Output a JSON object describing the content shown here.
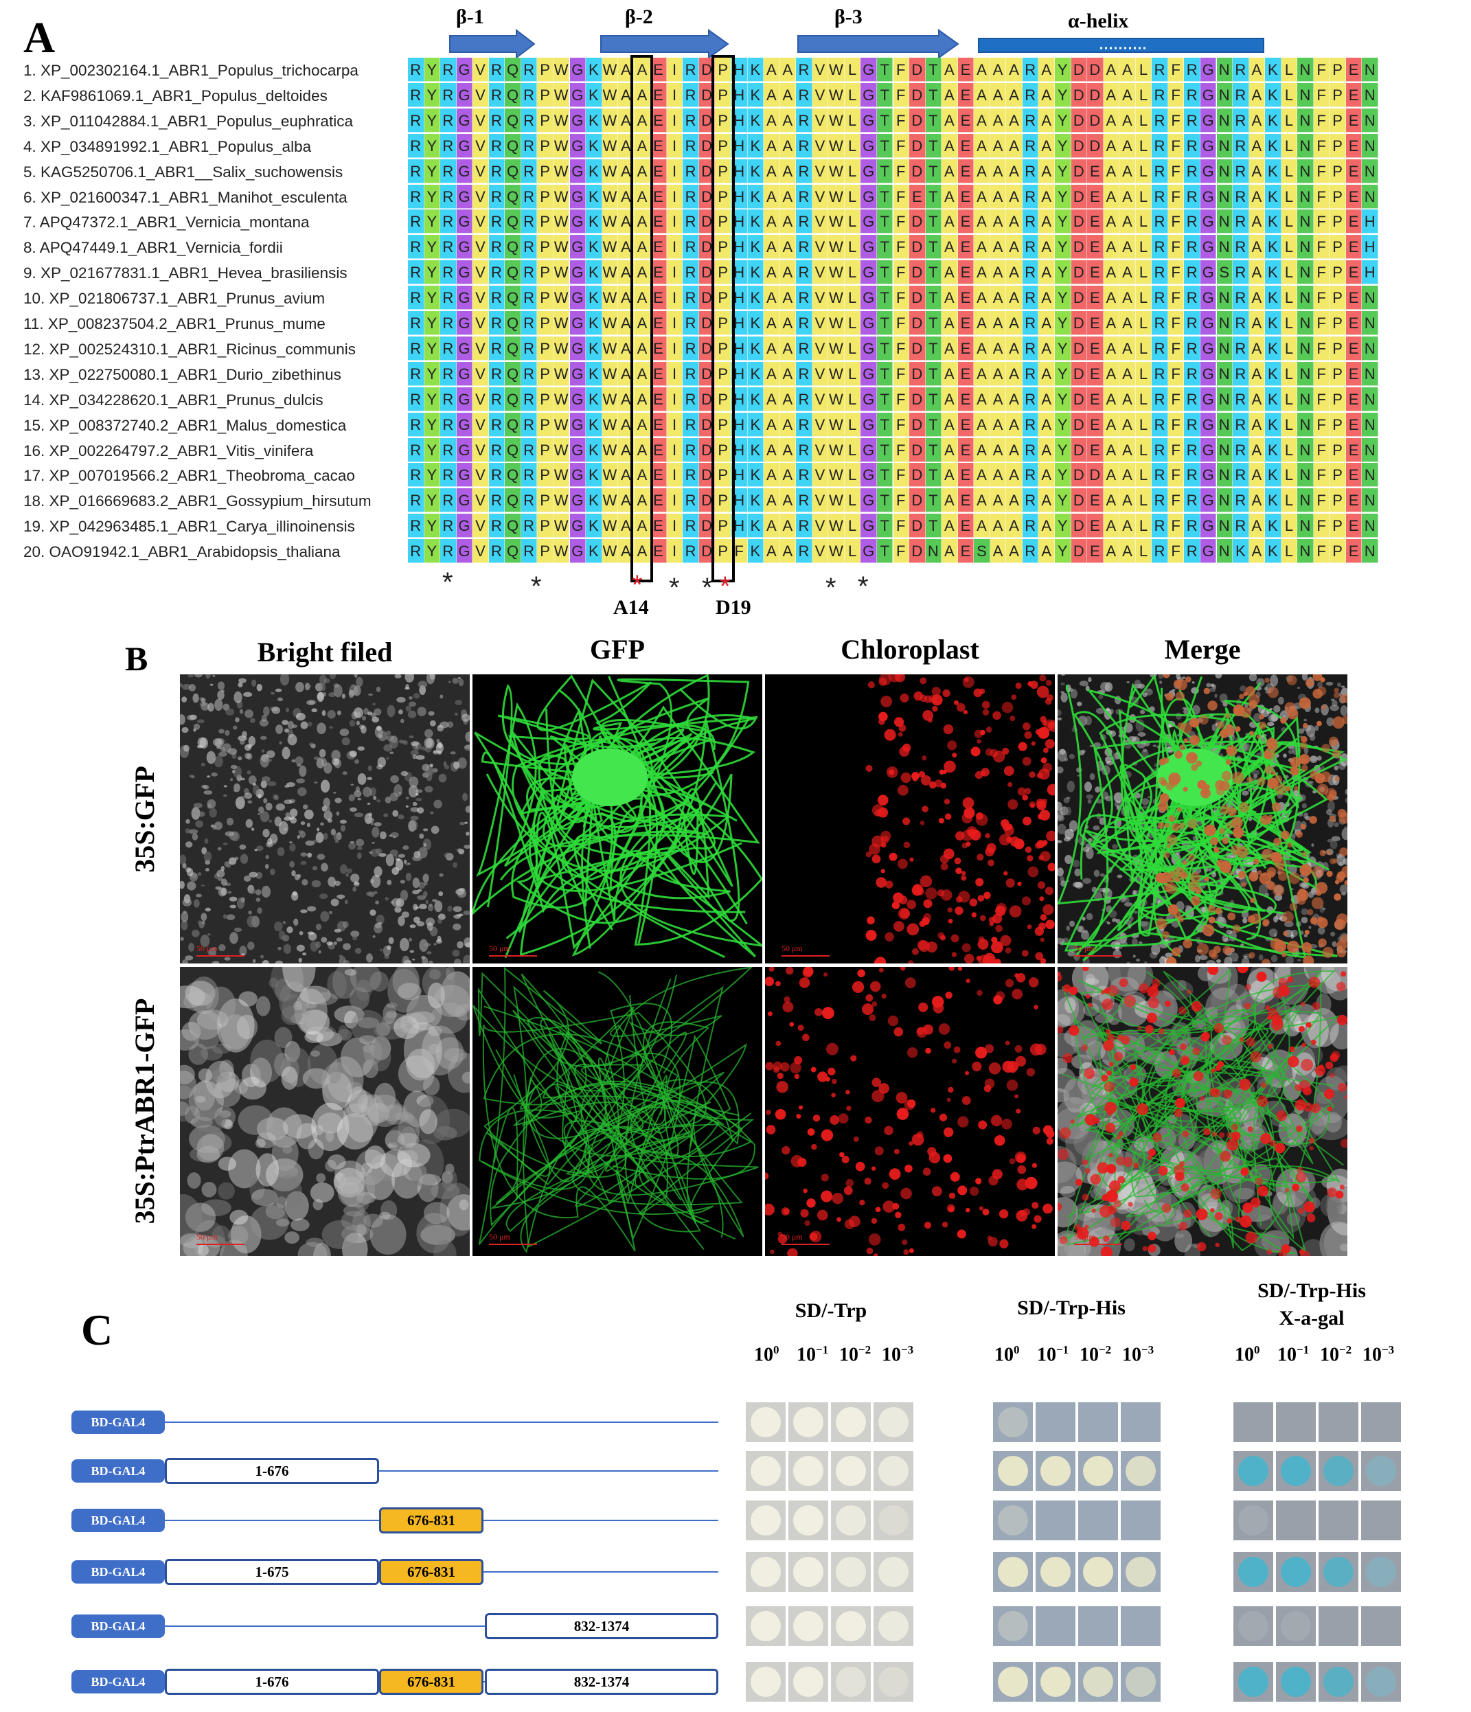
{
  "panelA": {
    "letter": "A",
    "secondary_structure": [
      "β-1",
      "β-2",
      "β-3",
      "α-helix"
    ],
    "sequences": [
      {
        "name": "1. XP_002302164.1_ABR1_Populus_trichocarpa",
        "seq": "RYRGVRQRPWGKWAAEIRDPHKAARVWLGTFDTAEAAARAYDDAALRFRGNRAKLNFPEN"
      },
      {
        "name": "2. KAF9861069.1_ABR1_Populus_deltoides",
        "seq": "RYRGVRQRPWGKWAAEIRDPHKAARVWLGTFDTAEAAARAYDDAALRFRGNRAKLNFPEN"
      },
      {
        "name": "3. XP_011042884.1_ABR1_Populus_euphratica",
        "seq": "RYRGVRQRPWGKWAAEIRDPHKAARVWLGTFDTAEAAARAYDDAALRFRGNRAKLNFPEN"
      },
      {
        "name": "4. XP_034891992.1_ABR1_Populus_alba",
        "seq": "RYRGVRQRPWGKWAAEIRDPHKAARVWLGTFDTAEAAARAYDDAALRFRGNRAKLNFPEN"
      },
      {
        "name": "5. KAG5250706.1_ABR1__Salix_suchowensis",
        "seq": "RYRGVRQRPWGKWAAEIRDPHKAARVWLGTFDTAEAAARAYDEAALRFRGNRAKLNFPEN"
      },
      {
        "name": "6. XP_021600347.1_ABR1_Manihot_esculenta",
        "seq": "RYRGVRQRPWGKWAAEIRDPHKAARVWLGTFETAEAAARAYDEAALRFRGNRAKLNFPEN"
      },
      {
        "name": "7. APQ47372.1_ABR1_Vernicia_montana",
        "seq": "RYRGVRQRPWGKWAAEIRDPHKAARVWLGTFDTAEAAARAYDEAALRFRGNRAKLNFPEH"
      },
      {
        "name": "8. APQ47449.1_ABR1_Vernicia_fordii",
        "seq": "RYRGVRQRPWGKWAAEIRDPHKAARVWLGTFDTAEAAARAYDEAALRFRGNRAKLNFPEH"
      },
      {
        "name": "9. XP_021677831.1_ABR1_Hevea_brasiliensis",
        "seq": "RYRGVRQRPWGKWAAEIRDPHKAARVWLGTFDTAEAAARAYDEAALRFRGSRAKLNFPEH"
      },
      {
        "name": "10. XP_021806737.1_ABR1_Prunus_avium",
        "seq": "RYRGVRQRPWGKWAAEIRDPHKAARVWLGTFDTAEAAARAYDEAALRFRGNRAKLNFPEN"
      },
      {
        "name": "11. XP_008237504.2_ABR1_Prunus_mume",
        "seq": "RYRGVRQRPWGKWAAEIRDPHKAARVWLGTFDTAEAAARAYDEAALRFRGNRAKLNFPEN"
      },
      {
        "name": "12. XP_002524310.1_ABR1_Ricinus_communis",
        "seq": "RYRGVRQRPWGKWAAEIRDPHKAARVWLGTFDTAEAAARAYDEAALRFRGNRAKLNFPEN"
      },
      {
        "name": "13. XP_022750080.1_ABR1_Durio_zibethinus",
        "seq": "RYRGVRQRPWGKWAAEIRDPHKAARVWLGTFDTAEAAARAYDEAALRFRGNRAKLNFPEN"
      },
      {
        "name": "14. XP_034228620.1_ABR1_Prunus_dulcis",
        "seq": "RYRGVRQRPWGKWAAEIRDPHKAARVWLGTFDTAEAAARAYDEAALRFRGNRAKLNFPEN"
      },
      {
        "name": "15. XP_008372740.2_ABR1_Malus_domestica",
        "seq": "RYRGVRQRPWGKWAAEIRDPHKAARVWLGTFDTAEAAARAYDEAALRFRGNRAKLNFPEN"
      },
      {
        "name": "16. XP_002264797.2_ABR1_Vitis_vinifera",
        "seq": "RYRGVRQRPWGKWAAEIRDPHKAARVWLGTFDTAEAAARAYDEAALRFRGNRAKLNFPEN"
      },
      {
        "name": "17. XP_007019566.2_ABR1_Theobroma_cacao",
        "seq": "RYRGVRQRPWGKWAAEIRDPHKAARVWLGTFDTAEAAARAYDDAALRFRGNRAKLNFPEN"
      },
      {
        "name": "18. XP_016669683.2_ABR1_Gossypium_hirsutum",
        "seq": "RYRGVRQRPWGKWAAEIRDPHKAARVWLGTFDTAEAAARAYDEAALRFRGNRAKLNFPEN"
      },
      {
        "name": "19. XP_042963485.1_ABR1_Carya_illinoinensis",
        "seq": "RYRGVRQRPWGKWAAEIRDPHKAARVWLGTFDTAEAAARAYDEAALRFRGNRAKLNFPEN"
      },
      {
        "name": "20. OAO91942.1_ABR1_Arabidopsis_thaliana",
        "seq": "RYRGVRQRPWGKWAAEIRDPFKAARVWLGTFDNAESAARAYDEAALRFRGNKAKLNFPEN"
      }
    ],
    "residue_colors": {
      "R": "#3fd3f5",
      "K": "#3fd3f5",
      "H": "#3fd3f5",
      "Y": "#8fe04a",
      "G": "#b05de6",
      "V": "#f2e86a",
      "Q": "#57c957",
      "P": "#f2e86a",
      "W": "#f2e86a",
      "A": "#f2e86a",
      "E": "#f26767",
      "I": "#f2e86a",
      "D": "#f26767",
      "L": "#f2e86a",
      "T": "#57c957",
      "F": "#f2e86a",
      "N": "#57c957",
      "S": "#57c957",
      "M": "#f2e86a",
      "C": "#f2e86a"
    },
    "conserved_marks": "*",
    "highlighted": [
      {
        "label": "A14"
      },
      {
        "label": "D19"
      }
    ]
  },
  "panelB": {
    "letter": "B",
    "columns": [
      "Bright filed",
      "GFP",
      "Chloroplast",
      "Merge"
    ],
    "rows": [
      "35S:GFP",
      "35S:PtrABR1-GFP"
    ],
    "scale_bar": "50 μm"
  },
  "panelC": {
    "letter": "C",
    "bait_label": "BD-GAL4",
    "constructs": [
      {
        "frags": []
      },
      {
        "frags": [
          {
            "label": "1-676",
            "color": "white"
          }
        ]
      },
      {
        "frags": [
          {
            "label": "676-831",
            "color": "orange"
          }
        ]
      },
      {
        "frags": [
          {
            "label": "1-675",
            "color": "white"
          },
          {
            "label": "676-831",
            "color": "orange"
          }
        ]
      },
      {
        "frags": [
          {
            "label": "832-1374",
            "color": "white"
          }
        ]
      },
      {
        "frags": [
          {
            "label": "1-676",
            "color": "white"
          },
          {
            "label": "676-831",
            "color": "orange"
          },
          {
            "label": "832-1374",
            "color": "white"
          }
        ]
      }
    ],
    "conditions": [
      {
        "title": "SD/-Trp",
        "subtitle": ""
      },
      {
        "title": "SD/-Trp-His",
        "subtitle": ""
      },
      {
        "title": "SD/-Trp-His",
        "subtitle": "X-a-gal"
      }
    ],
    "dilutions": [
      {
        "base": "10",
        "exp": "0"
      },
      {
        "base": "10",
        "exp": "−1"
      },
      {
        "base": "10",
        "exp": "−2"
      },
      {
        "base": "10",
        "exp": "−3"
      }
    ],
    "growth": [
      [
        [
          4,
          4,
          4,
          3
        ],
        [
          1,
          0,
          0,
          0
        ],
        [
          0,
          0,
          0,
          0
        ]
      ],
      [
        [
          4,
          4,
          4,
          3
        ],
        [
          4,
          4,
          4,
          3
        ],
        [
          4,
          4,
          3,
          2
        ]
      ],
      [
        [
          4,
          4,
          3,
          1
        ],
        [
          1,
          0,
          0,
          0
        ],
        [
          1,
          0,
          0,
          0
        ]
      ],
      [
        [
          4,
          4,
          3,
          3
        ],
        [
          4,
          4,
          4,
          3
        ],
        [
          4,
          4,
          3,
          2
        ]
      ],
      [
        [
          4,
          4,
          4,
          3
        ],
        [
          1,
          0,
          0,
          0
        ],
        [
          1,
          1,
          0,
          0
        ]
      ],
      [
        [
          4,
          4,
          2,
          1
        ],
        [
          4,
          4,
          3,
          2
        ],
        [
          4,
          4,
          3,
          2
        ]
      ]
    ]
  }
}
